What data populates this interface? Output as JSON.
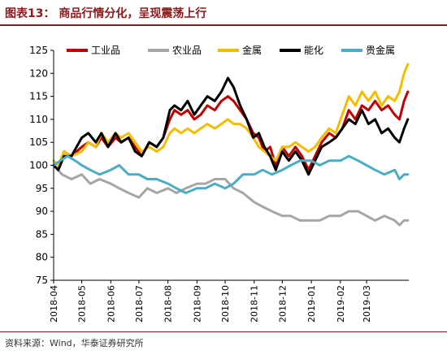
{
  "header": {
    "title": "图表13：  商品行情分化，呈现震荡上行"
  },
  "footer": {
    "source": "资料来源：Wind，华泰证券研究所"
  },
  "chart_data": {
    "type": "line",
    "title": "",
    "xlabel": "",
    "ylabel": "",
    "ylim": [
      75,
      125
    ],
    "yticks": [
      75,
      80,
      85,
      90,
      95,
      100,
      105,
      110,
      115,
      120,
      125
    ],
    "xlim": [
      "2018-04-01",
      "2019-04-15"
    ],
    "xtick_dates": [
      "2018-04-01",
      "2018-05-01",
      "2018-06-01",
      "2018-07-01",
      "2018-08-01",
      "2018-09-01",
      "2018-10-01",
      "2018-11-01",
      "2018-12-01",
      "2019-01-01",
      "2019-02-01",
      "2019-03-01"
    ],
    "xtick_labels": [
      "2018-04",
      "2018-05",
      "2018-06",
      "2018-07",
      "2018-08",
      "2018-09",
      "2018-10",
      "2018-11",
      "2018-12",
      "2019-01",
      "2019-02",
      "2019-03"
    ],
    "legend_position": "top",
    "grid": false,
    "series": [
      {
        "name": "工业品",
        "color": "#c00000",
        "points": [
          [
            "2018-04-01",
            100
          ],
          [
            "2018-04-06",
            99
          ],
          [
            "2018-04-12",
            103
          ],
          [
            "2018-04-20",
            102
          ],
          [
            "2018-05-01",
            104
          ],
          [
            "2018-05-08",
            105
          ],
          [
            "2018-05-16",
            104
          ],
          [
            "2018-05-22",
            106
          ],
          [
            "2018-05-29",
            104
          ],
          [
            "2018-06-06",
            106
          ],
          [
            "2018-06-12",
            105
          ],
          [
            "2018-06-20",
            106
          ],
          [
            "2018-06-27",
            104
          ],
          [
            "2018-07-04",
            102
          ],
          [
            "2018-07-12",
            105
          ],
          [
            "2018-07-20",
            104
          ],
          [
            "2018-07-27",
            106
          ],
          [
            "2018-08-03",
            110
          ],
          [
            "2018-08-08",
            112
          ],
          [
            "2018-08-15",
            111
          ],
          [
            "2018-08-22",
            112
          ],
          [
            "2018-08-29",
            110
          ],
          [
            "2018-09-05",
            111
          ],
          [
            "2018-09-12",
            113
          ],
          [
            "2018-09-20",
            112
          ],
          [
            "2018-09-27",
            114
          ],
          [
            "2018-10-04",
            115
          ],
          [
            "2018-10-10",
            114
          ],
          [
            "2018-10-17",
            112
          ],
          [
            "2018-10-24",
            110
          ],
          [
            "2018-10-31",
            107
          ],
          [
            "2018-11-06",
            106
          ],
          [
            "2018-11-12",
            103
          ],
          [
            "2018-11-18",
            104
          ],
          [
            "2018-11-24",
            100
          ],
          [
            "2018-12-01",
            104
          ],
          [
            "2018-12-08",
            102
          ],
          [
            "2018-12-15",
            104
          ],
          [
            "2018-12-22",
            102
          ],
          [
            "2018-12-29",
            99
          ],
          [
            "2019-01-05",
            102
          ],
          [
            "2019-01-12",
            105
          ],
          [
            "2019-01-20",
            107
          ],
          [
            "2019-01-27",
            106
          ],
          [
            "2019-02-03",
            108
          ],
          [
            "2019-02-10",
            112
          ],
          [
            "2019-02-17",
            110
          ],
          [
            "2019-02-24",
            113
          ],
          [
            "2019-03-03",
            112
          ],
          [
            "2019-03-10",
            114
          ],
          [
            "2019-03-17",
            112
          ],
          [
            "2019-03-24",
            113
          ],
          [
            "2019-03-31",
            111
          ],
          [
            "2019-04-05",
            110
          ],
          [
            "2019-04-10",
            114
          ],
          [
            "2019-04-14",
            116
          ]
        ]
      },
      {
        "name": "农业品",
        "color": "#a6a6a6",
        "points": [
          [
            "2018-04-01",
            100
          ],
          [
            "2018-04-10",
            98
          ],
          [
            "2018-04-20",
            97
          ],
          [
            "2018-05-01",
            98
          ],
          [
            "2018-05-10",
            96
          ],
          [
            "2018-05-20",
            97
          ],
          [
            "2018-06-01",
            96
          ],
          [
            "2018-06-10",
            95
          ],
          [
            "2018-06-20",
            94
          ],
          [
            "2018-07-01",
            93
          ],
          [
            "2018-07-10",
            95
          ],
          [
            "2018-07-20",
            94
          ],
          [
            "2018-08-01",
            95
          ],
          [
            "2018-08-10",
            94
          ],
          [
            "2018-08-20",
            95
          ],
          [
            "2018-09-01",
            96
          ],
          [
            "2018-09-10",
            96
          ],
          [
            "2018-09-20",
            97
          ],
          [
            "2018-10-01",
            97
          ],
          [
            "2018-10-10",
            95
          ],
          [
            "2018-10-20",
            94
          ],
          [
            "2018-11-01",
            92
          ],
          [
            "2018-11-10",
            91
          ],
          [
            "2018-11-20",
            90
          ],
          [
            "2018-12-01",
            89
          ],
          [
            "2018-12-10",
            89
          ],
          [
            "2018-12-20",
            88
          ],
          [
            "2019-01-01",
            88
          ],
          [
            "2019-01-10",
            88
          ],
          [
            "2019-01-20",
            89
          ],
          [
            "2019-02-01",
            89
          ],
          [
            "2019-02-10",
            90
          ],
          [
            "2019-02-20",
            90
          ],
          [
            "2019-03-01",
            89
          ],
          [
            "2019-03-10",
            88
          ],
          [
            "2019-03-20",
            89
          ],
          [
            "2019-03-31",
            88
          ],
          [
            "2019-04-05",
            87
          ],
          [
            "2019-04-10",
            88
          ],
          [
            "2019-04-14",
            88
          ]
        ]
      },
      {
        "name": "金属",
        "color": "#f5bc00",
        "points": [
          [
            "2018-04-01",
            101
          ],
          [
            "2018-04-06",
            100
          ],
          [
            "2018-04-12",
            103
          ],
          [
            "2018-04-20",
            102
          ],
          [
            "2018-05-01",
            103
          ],
          [
            "2018-05-08",
            105
          ],
          [
            "2018-05-16",
            104
          ],
          [
            "2018-05-22",
            107
          ],
          [
            "2018-05-29",
            105
          ],
          [
            "2018-06-06",
            107
          ],
          [
            "2018-06-12",
            106
          ],
          [
            "2018-06-20",
            107
          ],
          [
            "2018-06-27",
            105
          ],
          [
            "2018-07-04",
            103
          ],
          [
            "2018-07-12",
            104
          ],
          [
            "2018-07-20",
            103
          ],
          [
            "2018-07-27",
            104
          ],
          [
            "2018-08-03",
            107
          ],
          [
            "2018-08-08",
            108
          ],
          [
            "2018-08-15",
            107
          ],
          [
            "2018-08-22",
            108
          ],
          [
            "2018-08-29",
            107
          ],
          [
            "2018-09-05",
            108
          ],
          [
            "2018-09-12",
            109
          ],
          [
            "2018-09-20",
            108
          ],
          [
            "2018-09-27",
            109
          ],
          [
            "2018-10-04",
            110
          ],
          [
            "2018-10-10",
            109
          ],
          [
            "2018-10-17",
            109
          ],
          [
            "2018-10-24",
            108
          ],
          [
            "2018-10-31",
            106
          ],
          [
            "2018-11-06",
            104
          ],
          [
            "2018-11-12",
            103
          ],
          [
            "2018-11-18",
            102
          ],
          [
            "2018-11-24",
            101
          ],
          [
            "2018-12-01",
            104
          ],
          [
            "2018-12-08",
            104
          ],
          [
            "2018-12-15",
            105
          ],
          [
            "2018-12-22",
            104
          ],
          [
            "2018-12-29",
            103
          ],
          [
            "2019-01-05",
            104
          ],
          [
            "2019-01-12",
            106
          ],
          [
            "2019-01-20",
            108
          ],
          [
            "2019-01-27",
            107
          ],
          [
            "2019-02-03",
            111
          ],
          [
            "2019-02-10",
            115
          ],
          [
            "2019-02-17",
            113
          ],
          [
            "2019-02-24",
            116
          ],
          [
            "2019-03-03",
            114
          ],
          [
            "2019-03-10",
            116
          ],
          [
            "2019-03-17",
            113
          ],
          [
            "2019-03-24",
            115
          ],
          [
            "2019-03-31",
            114
          ],
          [
            "2019-04-05",
            116
          ],
          [
            "2019-04-10",
            120
          ],
          [
            "2019-04-14",
            122
          ]
        ]
      },
      {
        "name": "能化",
        "color": "#000000",
        "points": [
          [
            "2018-04-01",
            100
          ],
          [
            "2018-04-06",
            99
          ],
          [
            "2018-04-12",
            102
          ],
          [
            "2018-04-20",
            102
          ],
          [
            "2018-05-01",
            106
          ],
          [
            "2018-05-08",
            107
          ],
          [
            "2018-05-16",
            105
          ],
          [
            "2018-05-22",
            107
          ],
          [
            "2018-05-29",
            104
          ],
          [
            "2018-06-06",
            107
          ],
          [
            "2018-06-12",
            105
          ],
          [
            "2018-06-20",
            106
          ],
          [
            "2018-06-27",
            103
          ],
          [
            "2018-07-04",
            102
          ],
          [
            "2018-07-12",
            105
          ],
          [
            "2018-07-20",
            104
          ],
          [
            "2018-07-27",
            106
          ],
          [
            "2018-08-03",
            112
          ],
          [
            "2018-08-08",
            113
          ],
          [
            "2018-08-15",
            112
          ],
          [
            "2018-08-22",
            114
          ],
          [
            "2018-08-29",
            111
          ],
          [
            "2018-09-05",
            113
          ],
          [
            "2018-09-12",
            115
          ],
          [
            "2018-09-20",
            114
          ],
          [
            "2018-09-27",
            116
          ],
          [
            "2018-10-04",
            119
          ],
          [
            "2018-10-10",
            117
          ],
          [
            "2018-10-17",
            113
          ],
          [
            "2018-10-24",
            110
          ],
          [
            "2018-10-31",
            106
          ],
          [
            "2018-11-06",
            107
          ],
          [
            "2018-11-12",
            104
          ],
          [
            "2018-11-18",
            102
          ],
          [
            "2018-11-24",
            99
          ],
          [
            "2018-12-01",
            103
          ],
          [
            "2018-12-08",
            101
          ],
          [
            "2018-12-15",
            103
          ],
          [
            "2018-12-22",
            101
          ],
          [
            "2018-12-29",
            98
          ],
          [
            "2019-01-05",
            101
          ],
          [
            "2019-01-12",
            104
          ],
          [
            "2019-01-20",
            105
          ],
          [
            "2019-01-27",
            106
          ],
          [
            "2019-02-03",
            108
          ],
          [
            "2019-02-10",
            110
          ],
          [
            "2019-02-17",
            109
          ],
          [
            "2019-02-24",
            112
          ],
          [
            "2019-03-03",
            109
          ],
          [
            "2019-03-10",
            110
          ],
          [
            "2019-03-17",
            107
          ],
          [
            "2019-03-24",
            108
          ],
          [
            "2019-03-31",
            106
          ],
          [
            "2019-04-05",
            105
          ],
          [
            "2019-04-10",
            108
          ],
          [
            "2019-04-14",
            110
          ]
        ]
      },
      {
        "name": "贵金属",
        "color": "#4bacc6",
        "points": [
          [
            "2018-04-01",
            100
          ],
          [
            "2018-04-08",
            101
          ],
          [
            "2018-04-16",
            102
          ],
          [
            "2018-04-24",
            101
          ],
          [
            "2018-05-01",
            100
          ],
          [
            "2018-05-10",
            99
          ],
          [
            "2018-05-20",
            98
          ],
          [
            "2018-06-01",
            99
          ],
          [
            "2018-06-10",
            100
          ],
          [
            "2018-06-20",
            98
          ],
          [
            "2018-07-01",
            98
          ],
          [
            "2018-07-10",
            97
          ],
          [
            "2018-07-20",
            97
          ],
          [
            "2018-08-01",
            96
          ],
          [
            "2018-08-10",
            95
          ],
          [
            "2018-08-20",
            94
          ],
          [
            "2018-09-01",
            95
          ],
          [
            "2018-09-10",
            95
          ],
          [
            "2018-09-20",
            96
          ],
          [
            "2018-10-01",
            95
          ],
          [
            "2018-10-10",
            96
          ],
          [
            "2018-10-20",
            98
          ],
          [
            "2018-11-01",
            98
          ],
          [
            "2018-11-10",
            99
          ],
          [
            "2018-11-20",
            98
          ],
          [
            "2018-12-01",
            99
          ],
          [
            "2018-12-10",
            100
          ],
          [
            "2018-12-20",
            101
          ],
          [
            "2019-01-01",
            101
          ],
          [
            "2019-01-10",
            100
          ],
          [
            "2019-01-20",
            101
          ],
          [
            "2019-02-01",
            101
          ],
          [
            "2019-02-10",
            102
          ],
          [
            "2019-02-20",
            101
          ],
          [
            "2019-03-01",
            100
          ],
          [
            "2019-03-10",
            99
          ],
          [
            "2019-03-20",
            98
          ],
          [
            "2019-03-31",
            99
          ],
          [
            "2019-04-05",
            97
          ],
          [
            "2019-04-10",
            98
          ],
          [
            "2019-04-14",
            98
          ]
        ]
      }
    ]
  }
}
